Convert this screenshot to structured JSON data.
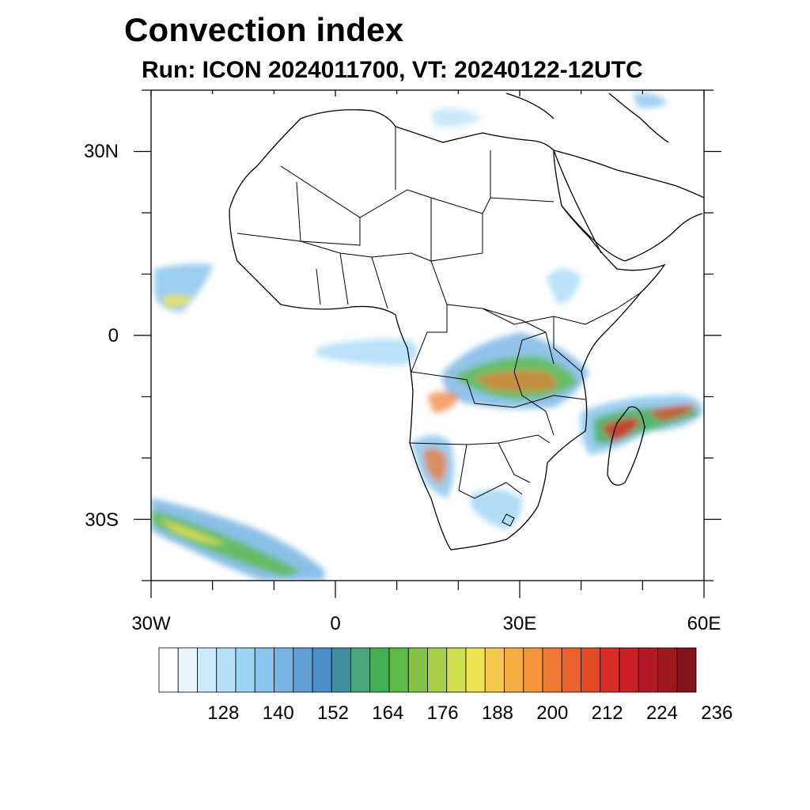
{
  "title": "Convection index",
  "subtitle": "Run: ICON 2024011700,  VT: 20240122-12UTC",
  "map": {
    "lon_range": [
      -30,
      60
    ],
    "lat_range": [
      -40,
      40
    ],
    "y_ticks": [
      "30N",
      "0",
      "30S"
    ],
    "x_ticks": [
      "30W",
      "0",
      "30E",
      "60E"
    ]
  },
  "colorbar": {
    "colors": [
      "#ffffff",
      "#e8f5fd",
      "#cdeafa",
      "#b6e0f7",
      "#9dd5f5",
      "#89c5ec",
      "#77b4e3",
      "#5f9fd6",
      "#4a8fc9",
      "#3f8f9e",
      "#49a57b",
      "#43af54",
      "#5cbb45",
      "#82c246",
      "#a8cf4a",
      "#cfdd4f",
      "#efe352",
      "#f6c84b",
      "#f4ad43",
      "#f3963b",
      "#ef7a32",
      "#ea6129",
      "#e34a26",
      "#d92e27",
      "#c92028",
      "#b41a25",
      "#9e1820",
      "#84141b"
    ],
    "labels": [
      "128",
      "140",
      "152",
      "164",
      "176",
      "188",
      "200",
      "212",
      "224",
      "236"
    ]
  }
}
